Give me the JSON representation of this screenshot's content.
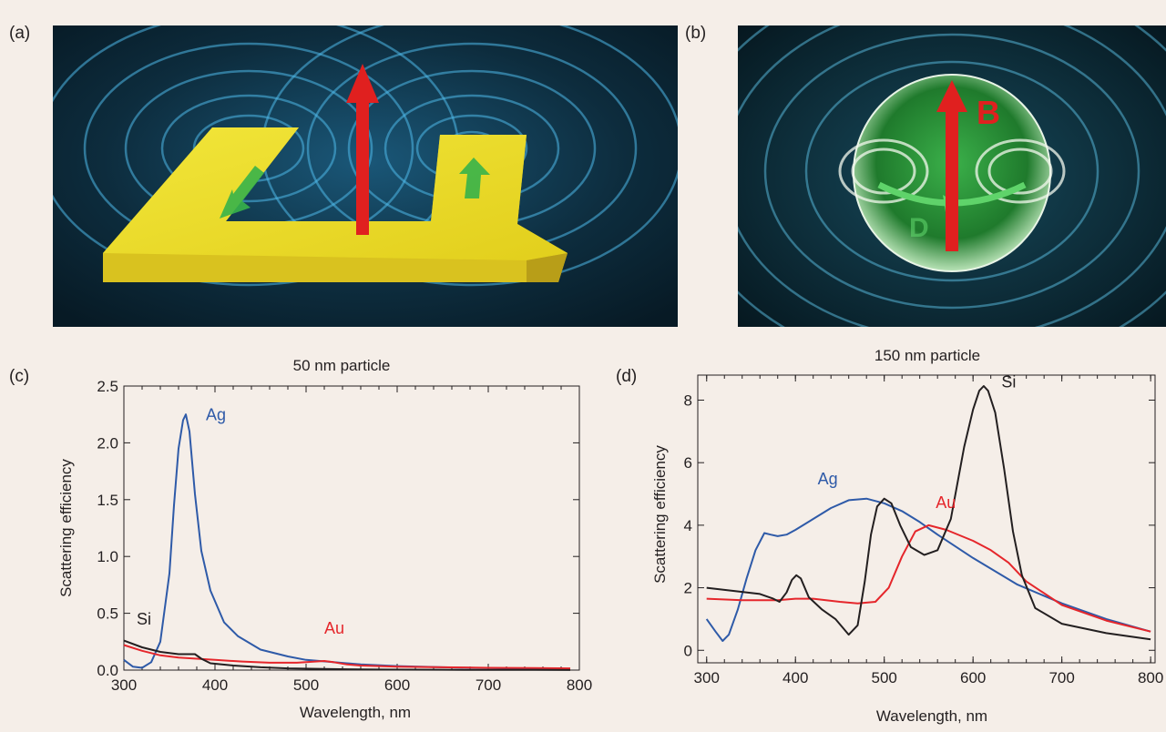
{
  "figure": {
    "panel_labels": {
      "a": "(a)",
      "b": "(b)",
      "c": "(c)",
      "d": "(d)"
    },
    "panel_b_letters": {
      "B": "B",
      "D": "D"
    }
  },
  "chart_data": [
    {
      "type": "line",
      "title": "50 nm particle",
      "xlabel": "Wavelength, nm",
      "ylabel": "Scattering efficiency",
      "xlim": [
        300,
        800
      ],
      "ylim": [
        0,
        2.5
      ],
      "xticks": [
        300,
        400,
        500,
        600,
        700,
        800
      ],
      "yticks": [
        0.0,
        0.5,
        1.0,
        1.5,
        2.0,
        2.5
      ],
      "ytick_labels": [
        "0.0",
        "0.5",
        "1.0",
        "1.5",
        "2.0",
        "2.5"
      ],
      "grid": false,
      "series": [
        {
          "name": "Ag",
          "color": "#2e5aa8",
          "x": [
            300,
            310,
            320,
            330,
            340,
            350,
            355,
            360,
            365,
            368,
            372,
            378,
            385,
            395,
            410,
            425,
            450,
            480,
            500,
            530,
            560,
            600,
            650,
            700,
            750,
            790
          ],
          "y": [
            0.09,
            0.03,
            0.02,
            0.07,
            0.25,
            0.85,
            1.45,
            1.95,
            2.2,
            2.25,
            2.1,
            1.55,
            1.05,
            0.7,
            0.42,
            0.3,
            0.18,
            0.12,
            0.09,
            0.07,
            0.05,
            0.035,
            0.025,
            0.018,
            0.012,
            0.01
          ]
        },
        {
          "name": "Au",
          "color": "#e5262b",
          "x": [
            300,
            320,
            340,
            360,
            380,
            400,
            430,
            460,
            490,
            510,
            520,
            530,
            545,
            560,
            600,
            650,
            700,
            750,
            790
          ],
          "y": [
            0.22,
            0.17,
            0.13,
            0.11,
            0.1,
            0.09,
            0.075,
            0.065,
            0.065,
            0.075,
            0.08,
            0.07,
            0.05,
            0.04,
            0.03,
            0.025,
            0.02,
            0.018,
            0.015
          ]
        },
        {
          "name": "Si",
          "color": "#231f20",
          "x": [
            300,
            320,
            340,
            360,
            378,
            385,
            395,
            420,
            450,
            480,
            520,
            560,
            600,
            650,
            700,
            750,
            790
          ],
          "y": [
            0.26,
            0.2,
            0.16,
            0.14,
            0.14,
            0.1,
            0.06,
            0.04,
            0.025,
            0.015,
            0.01,
            0.006,
            0.004,
            0.003,
            0.002,
            0.002,
            0.001
          ]
        }
      ],
      "annotations": [
        {
          "text": "Ag",
          "color": "#2e5aa8",
          "x": 390,
          "y": 2.2
        },
        {
          "text": "Au",
          "color": "#e5262b",
          "x": 520,
          "y": 0.32
        },
        {
          "text": "Si",
          "color": "#231f20",
          "x": 314,
          "y": 0.4
        }
      ]
    },
    {
      "type": "line",
      "title": "150 nm particle",
      "xlabel": "Wavelength, nm",
      "ylabel": "Scattering efficiency",
      "xlim": [
        290,
        805
      ],
      "ylim": [
        -0.4,
        8.8
      ],
      "xticks": [
        300,
        400,
        500,
        600,
        700,
        800
      ],
      "yticks": [
        0,
        2,
        4,
        6,
        8
      ],
      "ytick_labels": [
        "0",
        "2",
        "4",
        "6",
        "8"
      ],
      "grid": false,
      "series": [
        {
          "name": "Ag",
          "color": "#2e5aa8",
          "x": [
            300,
            310,
            318,
            325,
            335,
            345,
            355,
            365,
            372,
            380,
            390,
            400,
            420,
            440,
            460,
            480,
            500,
            520,
            540,
            560,
            600,
            650,
            700,
            750,
            800
          ],
          "y": [
            1.0,
            0.6,
            0.3,
            0.5,
            1.3,
            2.3,
            3.2,
            3.75,
            3.7,
            3.65,
            3.7,
            3.85,
            4.2,
            4.55,
            4.8,
            4.85,
            4.7,
            4.45,
            4.1,
            3.7,
            2.95,
            2.1,
            1.5,
            1.0,
            0.6
          ]
        },
        {
          "name": "Au",
          "color": "#e5262b",
          "x": [
            300,
            340,
            380,
            400,
            420,
            450,
            470,
            490,
            505,
            520,
            535,
            550,
            570,
            600,
            620,
            640,
            660,
            700,
            750,
            800
          ],
          "y": [
            1.65,
            1.6,
            1.6,
            1.65,
            1.65,
            1.55,
            1.5,
            1.55,
            2.0,
            3.0,
            3.8,
            4.0,
            3.85,
            3.5,
            3.2,
            2.8,
            2.2,
            1.45,
            0.95,
            0.6
          ]
        },
        {
          "name": "Si",
          "color": "#231f20",
          "x": [
            300,
            330,
            360,
            375,
            382,
            390,
            396,
            401,
            406,
            415,
            430,
            445,
            460,
            470,
            478,
            485,
            492,
            500,
            508,
            518,
            530,
            545,
            560,
            575,
            590,
            600,
            607,
            612,
            617,
            625,
            635,
            645,
            655,
            670,
            700,
            750,
            800
          ],
          "y": [
            2.0,
            1.9,
            1.8,
            1.65,
            1.55,
            1.85,
            2.25,
            2.4,
            2.3,
            1.7,
            1.3,
            1.0,
            0.5,
            0.8,
            2.2,
            3.7,
            4.6,
            4.85,
            4.7,
            4.0,
            3.3,
            3.05,
            3.2,
            4.2,
            6.5,
            7.7,
            8.3,
            8.45,
            8.3,
            7.6,
            5.8,
            3.8,
            2.4,
            1.35,
            0.85,
            0.55,
            0.35
          ]
        }
      ],
      "annotations": [
        {
          "text": "Ag",
          "color": "#2e5aa8",
          "x": 425,
          "y": 5.3
        },
        {
          "text": "Au",
          "color": "#e5262b",
          "x": 558,
          "y": 4.55
        },
        {
          "text": "Si",
          "color": "#231f20",
          "x": 632,
          "y": 8.4
        }
      ]
    }
  ]
}
